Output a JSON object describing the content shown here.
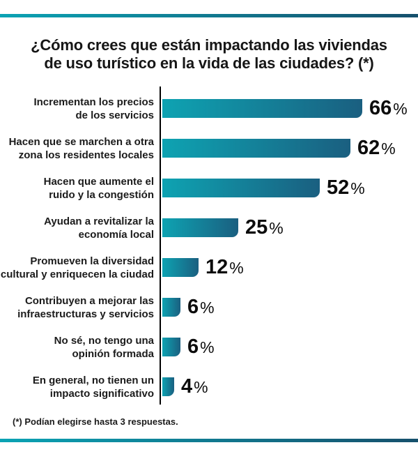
{
  "page": {
    "title_lines": [
      "¿Cómo crees que están impactando las viviendas",
      "de uso turístico en la vida de las ciudades? (*)"
    ],
    "footnote": "(*) Podían elegirse hasta 3 respuestas."
  },
  "chart_data": {
    "type": "bar",
    "orientation": "horizontal",
    "title": "¿Cómo crees que están impactando las viviendas de uso turístico en la vida de las ciudades? (*)",
    "footnote": "(*) Podían elegirse hasta 3 respuestas.",
    "unit": "%",
    "xlim": [
      0,
      70
    ],
    "grid": false,
    "legend": false,
    "value_labels": "end-of-bar",
    "categories": [
      [
        "Incrementan los precios",
        "de los servicios"
      ],
      [
        "Hacen que se marchen a otra",
        "zona los residentes locales"
      ],
      [
        "Hacen que aumente el",
        "ruido y la congestión"
      ],
      [
        "Ayudan a revitalizar la",
        "economía local"
      ],
      [
        "Promueven la diversidad",
        "cultural y enriquecen la ciudad"
      ],
      [
        "Contribuyen a mejorar las",
        "infraestructuras y servicios"
      ],
      [
        "No sé, no tengo una",
        "opinión formada"
      ],
      [
        "En general, no tienen un",
        "impacto significativo"
      ]
    ],
    "values": [
      66,
      62,
      52,
      25,
      12,
      6,
      6,
      4
    ],
    "colors": {
      "bar_gradient_start": "#0EA3B2",
      "bar_gradient_end": "#1A5F80",
      "rule_gradient_start": "#0BA3B4",
      "rule_gradient_end": "#16506C",
      "axis_line": "#000000",
      "text": "#1A1A1A"
    }
  }
}
